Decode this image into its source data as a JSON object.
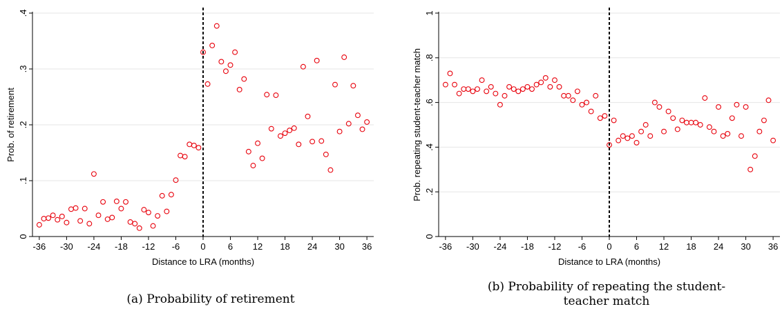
{
  "chart_data": [
    {
      "type": "scatter",
      "caption": "(a) Probability of retirement",
      "xlabel": "Distance to LRA (months)",
      "ylabel": "Prob. of retirement",
      "xlim": [
        -37.5,
        37.5
      ],
      "ylim": [
        0,
        0.4
      ],
      "xticks": [
        -36,
        -30,
        -24,
        -18,
        -12,
        -6,
        0,
        6,
        12,
        18,
        24,
        30,
        36
      ],
      "yticks": [
        0,
        0.1,
        0.2,
        0.3,
        0.4
      ],
      "ytick_labels": [
        "0",
        ".1",
        ".2",
        ".3",
        ".4"
      ],
      "grid": "horizontal",
      "cutoff_x": 0,
      "marker_color": "#e8000b",
      "x": [
        -36,
        -35,
        -34,
        -33,
        -32,
        -31,
        -30,
        -29,
        -28,
        -27,
        -26,
        -25,
        -24,
        -23,
        -22,
        -21,
        -20,
        -19,
        -18,
        -17,
        -16,
        -15,
        -14,
        -13,
        -12,
        -11,
        -10,
        -9,
        -8,
        -7,
        -6,
        -5,
        -4,
        -3,
        -2,
        -1,
        0,
        1,
        2,
        3,
        4,
        5,
        6,
        7,
        8,
        9,
        10,
        11,
        12,
        13,
        14,
        15,
        16,
        17,
        18,
        19,
        20,
        21,
        22,
        23,
        24,
        25,
        26,
        27,
        28,
        29,
        30,
        31,
        32,
        33,
        34,
        35,
        36
      ],
      "y": [
        0.021,
        0.032,
        0.033,
        0.038,
        0.03,
        0.036,
        0.025,
        0.049,
        0.051,
        0.028,
        0.05,
        0.023,
        0.112,
        0.038,
        0.062,
        0.031,
        0.034,
        0.063,
        0.05,
        0.062,
        0.026,
        0.023,
        0.015,
        0.048,
        0.043,
        0.019,
        0.037,
        0.073,
        0.045,
        0.075,
        0.101,
        0.145,
        0.143,
        0.165,
        0.163,
        0.159,
        0.33,
        0.273,
        0.342,
        0.377,
        0.313,
        0.296,
        0.307,
        0.33,
        0.263,
        0.282,
        0.152,
        0.127,
        0.167,
        0.14,
        0.254,
        0.193,
        0.253,
        0.18,
        0.185,
        0.19,
        0.194,
        0.165,
        0.304,
        0.215,
        0.17,
        0.315,
        0.171,
        0.147,
        0.119,
        0.272,
        0.188,
        0.321,
        0.202,
        0.27,
        0.217,
        0.192,
        0.205
      ]
    },
    {
      "type": "scatter",
      "caption": "(b) Probability of repeating the student-teacher match",
      "xlabel": "Distance to LRA (months)",
      "ylabel": "Prob. repeating student-teacher match",
      "xlim": [
        -37.5,
        37.5
      ],
      "ylim": [
        0,
        1
      ],
      "xticks": [
        -36,
        -30,
        -24,
        -18,
        -12,
        -6,
        0,
        6,
        12,
        18,
        24,
        30,
        36
      ],
      "yticks": [
        0,
        0.2,
        0.4,
        0.6,
        0.8,
        1
      ],
      "ytick_labels": [
        "0",
        ".2",
        ".4",
        ".6",
        ".8",
        "1"
      ],
      "grid": "horizontal",
      "cutoff_x": 0,
      "marker_color": "#e8000b",
      "x": [
        -36,
        -35,
        -34,
        -33,
        -32,
        -31,
        -30,
        -29,
        -28,
        -27,
        -26,
        -25,
        -24,
        -23,
        -22,
        -21,
        -20,
        -19,
        -18,
        -17,
        -16,
        -15,
        -14,
        -13,
        -12,
        -11,
        -10,
        -9,
        -8,
        -7,
        -6,
        -5,
        -4,
        -3,
        -2,
        -1,
        0,
        1,
        2,
        3,
        4,
        5,
        6,
        7,
        8,
        9,
        10,
        11,
        12,
        13,
        14,
        15,
        16,
        17,
        18,
        19,
        20,
        21,
        22,
        23,
        24,
        25,
        26,
        27,
        28,
        29,
        30,
        31,
        32,
        33,
        34,
        35,
        36
      ],
      "y": [
        0.68,
        0.73,
        0.68,
        0.64,
        0.66,
        0.66,
        0.65,
        0.66,
        0.7,
        0.65,
        0.67,
        0.64,
        0.59,
        0.63,
        0.67,
        0.66,
        0.65,
        0.66,
        0.67,
        0.66,
        0.68,
        0.69,
        0.71,
        0.67,
        0.7,
        0.67,
        0.63,
        0.63,
        0.61,
        0.65,
        0.59,
        0.6,
        0.56,
        0.63,
        0.53,
        0.54,
        0.41,
        0.52,
        0.43,
        0.45,
        0.44,
        0.45,
        0.42,
        0.47,
        0.5,
        0.45,
        0.6,
        0.58,
        0.47,
        0.56,
        0.53,
        0.48,
        0.52,
        0.51,
        0.51,
        0.51,
        0.5,
        0.62,
        0.49,
        0.47,
        0.58,
        0.45,
        0.46,
        0.53,
        0.59,
        0.45,
        0.58,
        0.3,
        0.36,
        0.47,
        0.52,
        0.61,
        0.43
      ]
    }
  ]
}
